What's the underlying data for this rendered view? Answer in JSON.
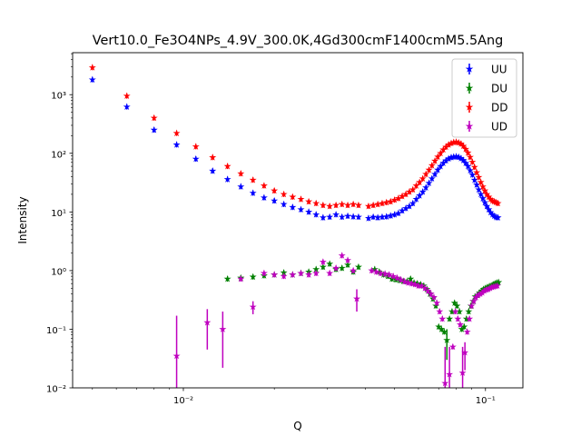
{
  "chart_data": {
    "type": "scatter",
    "title": "Vert10.0_Fe3O4NPs_4.9V_300.0K,4Gd300cmF1400cmM5.5Ang",
    "xlabel": "Q",
    "ylabel": "Intensity",
    "xscale": "log",
    "yscale": "log",
    "xlim": [
      0.0043,
      0.133
    ],
    "ylim": [
      0.01,
      5200
    ],
    "grid": false,
    "legend_position": "top-right",
    "x_ticks": [
      {
        "value": 0.01,
        "label": "10⁻²"
      },
      {
        "value": 0.1,
        "label": "10⁻¹"
      }
    ],
    "y_ticks": [
      {
        "value": 0.01,
        "label": "10⁻²"
      },
      {
        "value": 0.1,
        "label": "10⁻¹"
      },
      {
        "value": 1,
        "label": "10⁰"
      },
      {
        "value": 10,
        "label": "10¹"
      },
      {
        "value": 100,
        "label": "10²"
      },
      {
        "value": 1000,
        "label": "10³"
      }
    ],
    "series": [
      {
        "name": "UU",
        "color": "#0000ff",
        "points": [
          [
            0.005,
            1800
          ],
          [
            0.0065,
            620
          ],
          [
            0.008,
            250
          ],
          [
            0.0095,
            140
          ],
          [
            0.011,
            80
          ],
          [
            0.0125,
            50
          ],
          [
            0.014,
            36
          ],
          [
            0.0155,
            27
          ],
          [
            0.017,
            21
          ],
          [
            0.0185,
            17.5
          ],
          [
            0.02,
            15.5
          ],
          [
            0.0215,
            13.5
          ],
          [
            0.023,
            12
          ],
          [
            0.0245,
            11
          ],
          [
            0.026,
            10
          ],
          [
            0.0275,
            9
          ],
          [
            0.029,
            8
          ],
          [
            0.0305,
            8.2
          ],
          [
            0.032,
            9
          ],
          [
            0.0335,
            8.2
          ],
          [
            0.035,
            8.5
          ],
          [
            0.0365,
            8.3
          ],
          [
            0.038,
            8.2
          ],
          [
            0.041,
            7.8
          ],
          [
            0.0425,
            8.2
          ],
          [
            0.044,
            8
          ],
          [
            0.0455,
            8.2
          ],
          [
            0.047,
            8.3
          ],
          [
            0.0485,
            8.6
          ],
          [
            0.05,
            9
          ],
          [
            0.0515,
            9.5
          ],
          [
            0.053,
            10.5
          ],
          [
            0.0545,
            11.5
          ],
          [
            0.056,
            12.5
          ],
          [
            0.0575,
            14
          ],
          [
            0.059,
            16.5
          ],
          [
            0.0605,
            19
          ],
          [
            0.062,
            22
          ],
          [
            0.0635,
            26
          ],
          [
            0.065,
            31
          ],
          [
            0.0665,
            37
          ],
          [
            0.068,
            44
          ],
          [
            0.0695,
            52
          ],
          [
            0.071,
            60
          ],
          [
            0.0725,
            68
          ],
          [
            0.074,
            75
          ],
          [
            0.0755,
            81
          ],
          [
            0.077,
            85
          ],
          [
            0.0785,
            87
          ],
          [
            0.08,
            88
          ],
          [
            0.0815,
            86
          ],
          [
            0.083,
            82
          ],
          [
            0.0845,
            76
          ],
          [
            0.086,
            68
          ],
          [
            0.0875,
            60
          ],
          [
            0.089,
            51
          ],
          [
            0.0905,
            43
          ],
          [
            0.092,
            35
          ],
          [
            0.0935,
            29
          ],
          [
            0.095,
            24
          ],
          [
            0.0965,
            20
          ],
          [
            0.098,
            17
          ],
          [
            0.0995,
            14.5
          ],
          [
            0.101,
            12.5
          ],
          [
            0.1025,
            11
          ],
          [
            0.104,
            9.8
          ],
          [
            0.1055,
            9
          ],
          [
            0.107,
            8.5
          ],
          [
            0.1085,
            8.1
          ],
          [
            0.11,
            8
          ]
        ]
      },
      {
        "name": "DU",
        "color": "#008000",
        "points": [
          [
            0.014,
            0.72
          ],
          [
            0.0155,
            0.75
          ],
          [
            0.017,
            0.78
          ],
          [
            0.0185,
            0.82
          ],
          [
            0.02,
            0.85
          ],
          [
            0.0215,
            0.92
          ],
          [
            0.023,
            0.85
          ],
          [
            0.0245,
            0.9
          ],
          [
            0.026,
            0.95
          ],
          [
            0.0275,
            1.05
          ],
          [
            0.029,
            1.15
          ],
          [
            0.0305,
            1.3
          ],
          [
            0.032,
            1.05
          ],
          [
            0.0335,
            1.1
          ],
          [
            0.035,
            1.25
          ],
          [
            0.0365,
            0.95
          ],
          [
            0.038,
            1.15
          ],
          [
            0.043,
            1.05
          ],
          [
            0.0445,
            0.95
          ],
          [
            0.046,
            0.85
          ],
          [
            0.0475,
            0.8
          ],
          [
            0.049,
            0.72
          ],
          [
            0.0505,
            0.7
          ],
          [
            0.052,
            0.68
          ],
          [
            0.0535,
            0.66
          ],
          [
            0.055,
            0.65
          ],
          [
            0.0565,
            0.72
          ],
          [
            0.058,
            0.62
          ],
          [
            0.0595,
            0.6
          ],
          [
            0.061,
            0.58
          ],
          [
            0.0625,
            0.55
          ],
          [
            0.064,
            0.48
          ],
          [
            0.0655,
            0.4
          ],
          [
            0.067,
            0.33
          ],
          [
            0.0685,
            0.25
          ],
          [
            0.07,
            0.11
          ],
          [
            0.0715,
            0.1
          ],
          [
            0.073,
            0.09
          ],
          [
            0.0745,
            0.065
          ],
          [
            0.076,
            0.15
          ],
          [
            0.0775,
            0.2
          ],
          [
            0.079,
            0.28
          ],
          [
            0.0805,
            0.25
          ],
          [
            0.082,
            0.2
          ],
          [
            0.0835,
            0.1
          ],
          [
            0.085,
            0.11
          ],
          [
            0.0865,
            0.15
          ],
          [
            0.088,
            0.2
          ],
          [
            0.0895,
            0.25
          ],
          [
            0.091,
            0.3
          ],
          [
            0.0925,
            0.36
          ],
          [
            0.094,
            0.38
          ],
          [
            0.0955,
            0.42
          ],
          [
            0.097,
            0.45
          ],
          [
            0.0985,
            0.48
          ],
          [
            0.1,
            0.5
          ],
          [
            0.1015,
            0.52
          ],
          [
            0.103,
            0.54
          ],
          [
            0.1045,
            0.55
          ],
          [
            0.106,
            0.58
          ],
          [
            0.1075,
            0.6
          ],
          [
            0.109,
            0.62
          ],
          [
            0.1105,
            0.63
          ]
        ],
        "error_points": [
          [
            0.0745,
            0.065,
            0.03,
            0.1
          ]
        ]
      },
      {
        "name": "DD",
        "color": "#ff0000",
        "points": [
          [
            0.005,
            2900
          ],
          [
            0.0065,
            950
          ],
          [
            0.008,
            400
          ],
          [
            0.0095,
            220
          ],
          [
            0.011,
            130
          ],
          [
            0.0125,
            85
          ],
          [
            0.014,
            60
          ],
          [
            0.0155,
            45
          ],
          [
            0.017,
            35
          ],
          [
            0.0185,
            28
          ],
          [
            0.02,
            23
          ],
          [
            0.0215,
            20
          ],
          [
            0.023,
            18
          ],
          [
            0.0245,
            16.5
          ],
          [
            0.026,
            15
          ],
          [
            0.0275,
            14
          ],
          [
            0.029,
            13
          ],
          [
            0.0305,
            12.5
          ],
          [
            0.032,
            13
          ],
          [
            0.0335,
            13.5
          ],
          [
            0.035,
            13
          ],
          [
            0.0365,
            13.5
          ],
          [
            0.038,
            13
          ],
          [
            0.041,
            12.5
          ],
          [
            0.0425,
            13
          ],
          [
            0.044,
            13.5
          ],
          [
            0.0455,
            14
          ],
          [
            0.047,
            14.5
          ],
          [
            0.0485,
            15
          ],
          [
            0.05,
            16
          ],
          [
            0.0515,
            17
          ],
          [
            0.053,
            18.5
          ],
          [
            0.0545,
            20
          ],
          [
            0.056,
            22
          ],
          [
            0.0575,
            24
          ],
          [
            0.059,
            28
          ],
          [
            0.0605,
            32
          ],
          [
            0.062,
            37
          ],
          [
            0.0635,
            44
          ],
          [
            0.065,
            52
          ],
          [
            0.0665,
            62
          ],
          [
            0.068,
            74
          ],
          [
            0.0695,
            87
          ],
          [
            0.071,
            100
          ],
          [
            0.0725,
            115
          ],
          [
            0.074,
            128
          ],
          [
            0.0755,
            140
          ],
          [
            0.077,
            148
          ],
          [
            0.0785,
            154
          ],
          [
            0.08,
            156
          ],
          [
            0.0815,
            152
          ],
          [
            0.083,
            145
          ],
          [
            0.0845,
            133
          ],
          [
            0.086,
            118
          ],
          [
            0.0875,
            102
          ],
          [
            0.089,
            86
          ],
          [
            0.0905,
            71
          ],
          [
            0.092,
            58
          ],
          [
            0.0935,
            47
          ],
          [
            0.095,
            39
          ],
          [
            0.0965,
            32
          ],
          [
            0.098,
            27
          ],
          [
            0.0995,
            23
          ],
          [
            0.101,
            20
          ],
          [
            0.1025,
            18
          ],
          [
            0.104,
            16.5
          ],
          [
            0.1055,
            15.5
          ],
          [
            0.107,
            15
          ],
          [
            0.1085,
            14.5
          ],
          [
            0.11,
            14
          ]
        ]
      },
      {
        "name": "UD",
        "color": "#bf00bf",
        "points": [
          [
            0.0095,
            0.035
          ],
          [
            0.012,
            0.13
          ],
          [
            0.0135,
            0.1
          ],
          [
            0.0155,
            0.72
          ],
          [
            0.017,
            0.24
          ],
          [
            0.0185,
            0.9
          ],
          [
            0.02,
            0.85
          ],
          [
            0.0215,
            0.8
          ],
          [
            0.023,
            0.85
          ],
          [
            0.0245,
            0.9
          ],
          [
            0.026,
            0.85
          ],
          [
            0.0275,
            0.9
          ],
          [
            0.029,
            1.4
          ],
          [
            0.0305,
            0.9
          ],
          [
            0.032,
            1.1
          ],
          [
            0.0335,
            1.8
          ],
          [
            0.035,
            1.5
          ],
          [
            0.0365,
            1.0
          ],
          [
            0.0375,
            0.33
          ],
          [
            0.042,
            1.0
          ],
          [
            0.0435,
            0.95
          ],
          [
            0.045,
            0.9
          ],
          [
            0.0465,
            0.88
          ],
          [
            0.048,
            0.85
          ],
          [
            0.0495,
            0.8
          ],
          [
            0.051,
            0.75
          ],
          [
            0.0525,
            0.7
          ],
          [
            0.054,
            0.65
          ],
          [
            0.0555,
            0.62
          ],
          [
            0.057,
            0.6
          ],
          [
            0.0585,
            0.58
          ],
          [
            0.06,
            0.55
          ],
          [
            0.0615,
            0.55
          ],
          [
            0.063,
            0.5
          ],
          [
            0.0645,
            0.45
          ],
          [
            0.066,
            0.4
          ],
          [
            0.0675,
            0.35
          ],
          [
            0.069,
            0.28
          ],
          [
            0.0705,
            0.2
          ],
          [
            0.072,
            0.15
          ],
          [
            0.0735,
            0.012
          ],
          [
            0.076,
            0.017
          ],
          [
            0.078,
            0.05
          ],
          [
            0.0795,
            0.2
          ],
          [
            0.081,
            0.15
          ],
          [
            0.0825,
            0.12
          ],
          [
            0.084,
            0.018
          ],
          [
            0.0855,
            0.04
          ],
          [
            0.087,
            0.09
          ],
          [
            0.0885,
            0.15
          ],
          [
            0.09,
            0.25
          ],
          [
            0.0915,
            0.3
          ],
          [
            0.093,
            0.35
          ],
          [
            0.0945,
            0.38
          ],
          [
            0.096,
            0.4
          ],
          [
            0.0975,
            0.42
          ],
          [
            0.099,
            0.45
          ],
          [
            0.1005,
            0.47
          ],
          [
            0.102,
            0.48
          ],
          [
            0.1035,
            0.5
          ],
          [
            0.105,
            0.52
          ],
          [
            0.1065,
            0.53
          ],
          [
            0.108,
            0.54
          ],
          [
            0.1095,
            0.55
          ]
        ],
        "error_points": [
          [
            0.0095,
            0.035,
            0.008,
            0.17
          ],
          [
            0.012,
            0.13,
            0.045,
            0.22
          ],
          [
            0.0135,
            0.1,
            0.022,
            0.2
          ],
          [
            0.017,
            0.24,
            0.18,
            0.3
          ],
          [
            0.0375,
            0.33,
            0.2,
            0.48
          ],
          [
            0.0735,
            0.012,
            0.005,
            0.05
          ],
          [
            0.076,
            0.017,
            0.006,
            0.05
          ],
          [
            0.084,
            0.018,
            0.008,
            0.05
          ],
          [
            0.0855,
            0.04,
            0.02,
            0.06
          ]
        ]
      }
    ]
  }
}
